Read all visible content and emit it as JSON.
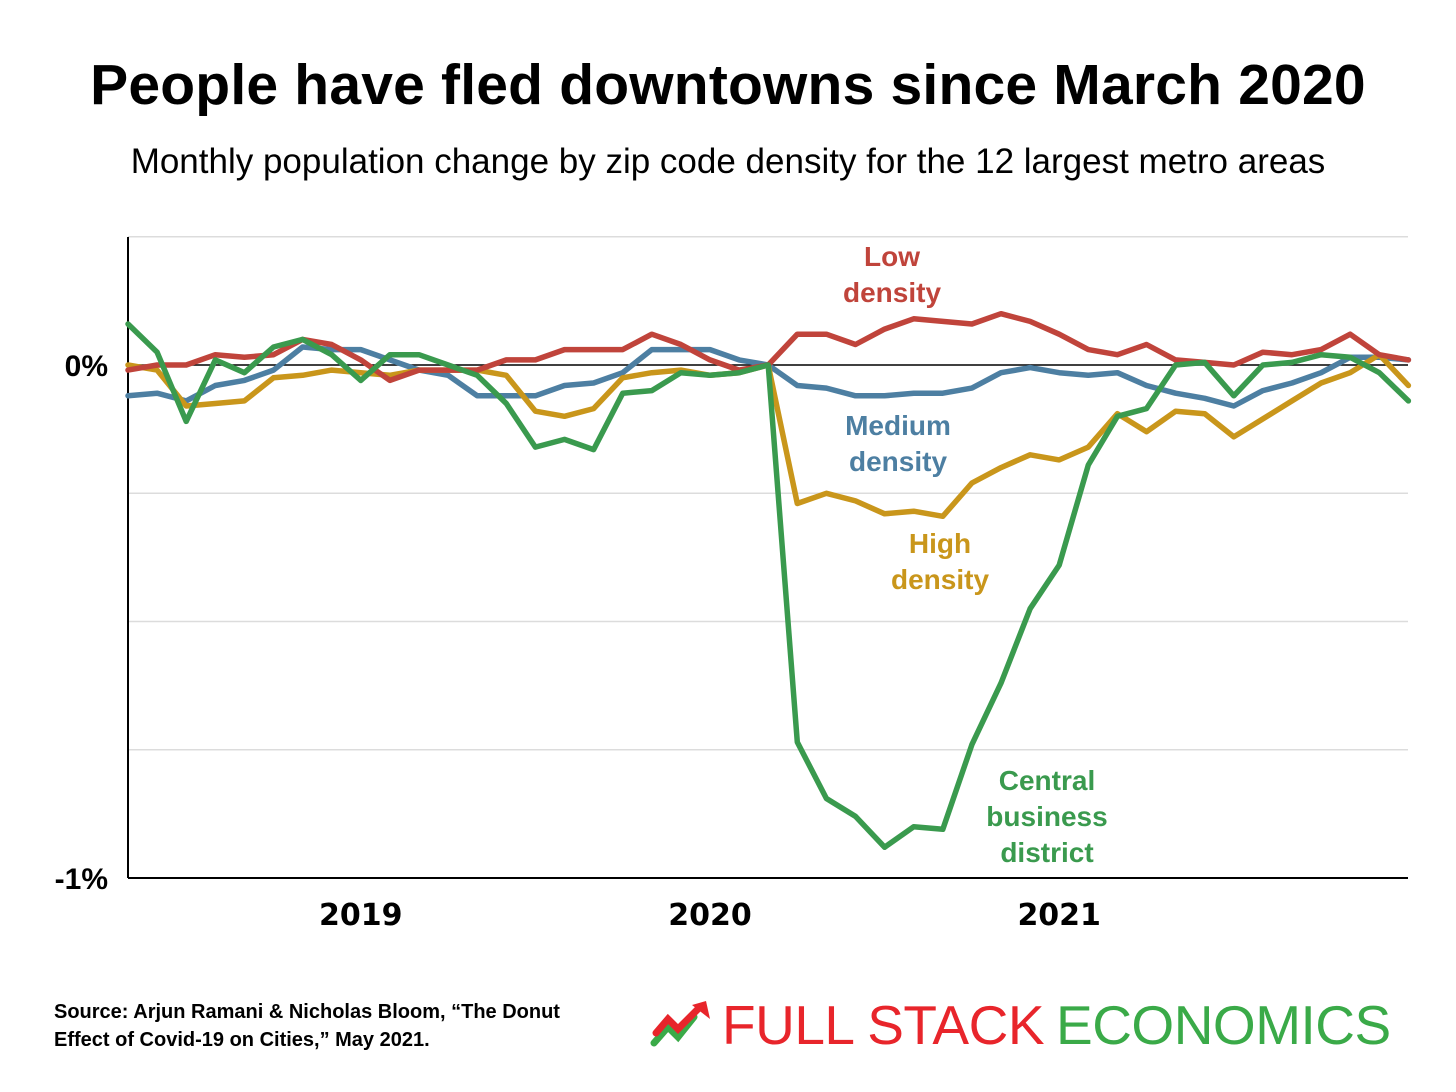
{
  "title": "People have fled downtowns since March 2020",
  "subtitle": "Monthly population change by zip code density for the 12 largest metro areas",
  "source": "Source: Arjun Ramani & Nicholas Bloom, “The Donut Effect of Covid-19 on Cities,” May 2021.",
  "logo": {
    "part1": "FULL STACK",
    "part2": "ECONOMICS",
    "colors": {
      "part1": "#e8252b",
      "part2": "#3aaa48"
    },
    "icon": "trend-arrow-icon"
  },
  "chart_data": {
    "type": "line",
    "title": "People have fled downtowns since March 2020",
    "subtitle": "Monthly population change by zip code density for the 12 largest metro areas",
    "xlabel": "",
    "ylabel": "",
    "ylim": [
      -1,
      0.25
    ],
    "ytick_labels": [
      {
        "value": 0,
        "label": "0%"
      },
      {
        "value": -1,
        "label": "-1%"
      }
    ],
    "gridlines": [
      0.25,
      -0.25,
      -0.5,
      -0.75
    ],
    "xtick_labels": [
      {
        "index": 8,
        "label": "2019"
      },
      {
        "index": 20,
        "label": "2020"
      },
      {
        "index": 32,
        "label": "2021"
      }
    ],
    "n_points": 45,
    "grid": true,
    "legend": "none (series labels placed inline next to lines)",
    "series": [
      {
        "name": "Low density",
        "label_lines": [
          "Low",
          "density"
        ],
        "color": "#c0443b",
        "values": [
          -0.01,
          0,
          0,
          0.02,
          0.015,
          0.02,
          0.05,
          0.04,
          0.01,
          -0.03,
          -0.01,
          -0.01,
          -0.01,
          0.01,
          0.01,
          0.03,
          0.03,
          0.03,
          0.06,
          0.04,
          0.01,
          -0.01,
          0,
          0.06,
          0.06,
          0.04,
          0.07,
          0.09,
          0.085,
          0.08,
          0.1,
          0.085,
          0.06,
          0.03,
          0.02,
          0.04,
          0.01,
          0.005,
          0,
          0.025,
          0.02,
          0.03,
          0.06,
          0.02,
          0.01
        ]
      },
      {
        "name": "Medium density",
        "label_lines": [
          "Medium",
          "density"
        ],
        "color": "#4d7fa2",
        "values": [
          -0.06,
          -0.055,
          -0.07,
          -0.04,
          -0.03,
          -0.01,
          0.035,
          0.03,
          0.03,
          0.01,
          -0.01,
          -0.02,
          -0.06,
          -0.06,
          -0.06,
          -0.04,
          -0.035,
          -0.015,
          0.03,
          0.03,
          0.03,
          0.01,
          0,
          -0.04,
          -0.045,
          -0.06,
          -0.06,
          -0.055,
          -0.055,
          -0.045,
          -0.015,
          -0.005,
          -0.015,
          -0.02,
          -0.015,
          -0.04,
          -0.055,
          -0.065,
          -0.08,
          -0.05,
          -0.035,
          -0.015,
          0.015,
          0.015,
          0.01
        ]
      },
      {
        "name": "High density",
        "label_lines": [
          "High",
          "density"
        ],
        "color": "#c9961b",
        "values": [
          0,
          -0.01,
          -0.08,
          -0.075,
          -0.07,
          -0.025,
          -0.02,
          -0.01,
          -0.015,
          -0.02,
          -0.01,
          -0.01,
          -0.01,
          -0.02,
          -0.09,
          -0.1,
          -0.085,
          -0.025,
          -0.015,
          -0.01,
          -0.02,
          -0.015,
          0,
          -0.27,
          -0.25,
          -0.265,
          -0.29,
          -0.285,
          -0.295,
          -0.23,
          -0.2,
          -0.175,
          -0.185,
          -0.16,
          -0.095,
          -0.13,
          -0.09,
          -0.095,
          -0.14,
          -0.105,
          -0.07,
          -0.035,
          -0.015,
          0.02,
          -0.04
        ]
      },
      {
        "name": "Central business district",
        "label_lines": [
          "Central",
          "business",
          "district"
        ],
        "color": "#3a9a4e",
        "values": [
          0.08,
          0.025,
          -0.11,
          0.01,
          -0.015,
          0.035,
          0.05,
          0.02,
          -0.03,
          0.02,
          0.02,
          0,
          -0.02,
          -0.075,
          -0.16,
          -0.145,
          -0.165,
          -0.055,
          -0.05,
          -0.015,
          -0.02,
          -0.015,
          0,
          -0.735,
          -0.845,
          -0.88,
          -0.94,
          -0.9,
          -0.905,
          -0.74,
          -0.62,
          -0.475,
          -0.39,
          -0.195,
          -0.1,
          -0.085,
          0,
          0.005,
          -0.06,
          0,
          0.005,
          0.02,
          0.015,
          -0.015,
          -0.07
        ]
      }
    ]
  }
}
